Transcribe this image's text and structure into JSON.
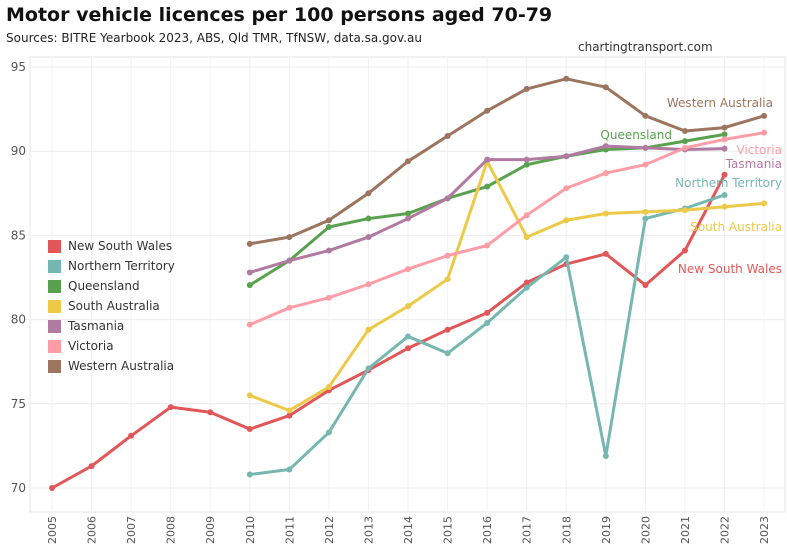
{
  "title": "Motor vehicle licences per 100 persons aged 70-79",
  "subtitle": "Sources: BITRE Yearbook 2023, ABS, Qld TMR, TfNSW, data.sa.gov.au",
  "site": "chartingtransport.com",
  "chart_data": {
    "type": "line",
    "title": "Motor vehicle licences per 100 persons aged 70-79",
    "x": [
      2005,
      2006,
      2007,
      2008,
      2009,
      2010,
      2011,
      2012,
      2013,
      2014,
      2015,
      2016,
      2017,
      2018,
      2019,
      2020,
      2021,
      2022,
      2023
    ],
    "ylim": [
      69,
      96
    ],
    "yticks": [
      70,
      75,
      80,
      85,
      90,
      95
    ],
    "grid": true,
    "legend": "left",
    "series": [
      {
        "name": "New South Wales",
        "color": "#e15759",
        "values": [
          70.0,
          71.3,
          73.1,
          74.8,
          74.5,
          73.5,
          74.3,
          75.8,
          77.0,
          78.3,
          79.4,
          80.4,
          82.2,
          83.3,
          83.9,
          82.05,
          84.1,
          88.6,
          null
        ]
      },
      {
        "name": "Northern Territory",
        "color": "#76b7b2",
        "values": [
          null,
          null,
          null,
          null,
          null,
          70.8,
          71.1,
          73.3,
          77.1,
          79.0,
          78.0,
          79.8,
          81.9,
          83.7,
          71.9,
          86.0,
          86.6,
          87.4,
          null
        ]
      },
      {
        "name": "Queensland",
        "color": "#59a14f",
        "values": [
          null,
          null,
          null,
          null,
          null,
          82.05,
          83.5,
          85.5,
          86.0,
          86.3,
          87.2,
          87.9,
          89.2,
          89.7,
          90.1,
          90.2,
          90.6,
          91.0,
          null
        ]
      },
      {
        "name": "South Australia",
        "color": "#edc948",
        "values": [
          null,
          null,
          null,
          null,
          null,
          75.5,
          74.6,
          76.0,
          79.4,
          80.8,
          82.4,
          89.4,
          84.9,
          85.9,
          86.3,
          86.4,
          86.5,
          86.7,
          86.9
        ]
      },
      {
        "name": "Tasmania",
        "color": "#b07aa1",
        "values": [
          null,
          null,
          null,
          null,
          null,
          82.8,
          83.5,
          84.1,
          84.9,
          86.0,
          87.2,
          89.5,
          89.5,
          89.7,
          90.3,
          90.2,
          90.1,
          90.15,
          null
        ]
      },
      {
        "name": "Victoria",
        "color": "#ff9da7",
        "values": [
          null,
          null,
          null,
          null,
          null,
          79.7,
          80.7,
          81.3,
          82.1,
          83.0,
          83.8,
          84.4,
          86.2,
          87.8,
          88.7,
          89.2,
          90.2,
          90.7,
          91.1
        ]
      },
      {
        "name": "Western Australia",
        "color": "#9c755f",
        "values": [
          null,
          null,
          null,
          null,
          null,
          84.5,
          84.9,
          85.9,
          87.5,
          89.4,
          90.9,
          92.4,
          93.7,
          94.3,
          93.8,
          92.1,
          91.2,
          91.4,
          92.1
        ]
      }
    ]
  }
}
